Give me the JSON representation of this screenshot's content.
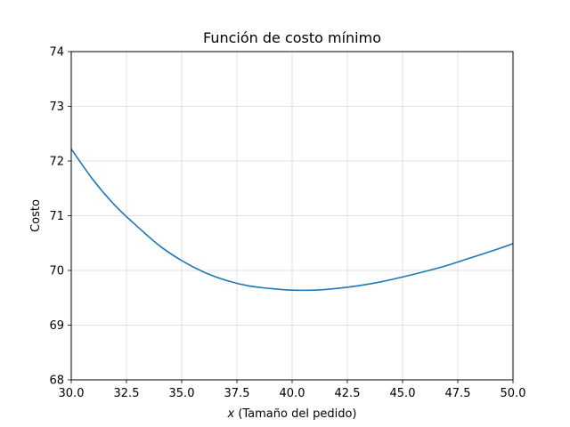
{
  "chart_data": {
    "type": "line",
    "title": "Función de costo mínimo",
    "xlabel_var": "x",
    "xlabel_rest": " (Tamaño del pedido)",
    "ylabel": "Costo",
    "xlim": [
      30,
      50
    ],
    "ylim": [
      68,
      74
    ],
    "xticks": [
      "30.0",
      "32.5",
      "35.0",
      "37.5",
      "40.0",
      "42.5",
      "45.0",
      "47.5",
      "50.0"
    ],
    "yticks": [
      "68",
      "69",
      "70",
      "71",
      "72",
      "73",
      "74"
    ],
    "grid": true,
    "series": [
      {
        "color": "#1f77b4",
        "x": [
          30,
          31,
          32,
          33,
          34,
          35,
          36,
          37,
          38,
          39,
          40,
          41,
          42,
          43,
          44,
          45,
          46,
          47,
          48,
          49,
          50
        ],
        "y": [
          72.22,
          71.65,
          71.18,
          70.8,
          70.45,
          70.18,
          69.97,
          69.82,
          69.72,
          69.67,
          69.64,
          69.64,
          69.67,
          69.72,
          69.79,
          69.88,
          69.98,
          70.09,
          70.22,
          70.35,
          70.49
        ]
      }
    ]
  }
}
